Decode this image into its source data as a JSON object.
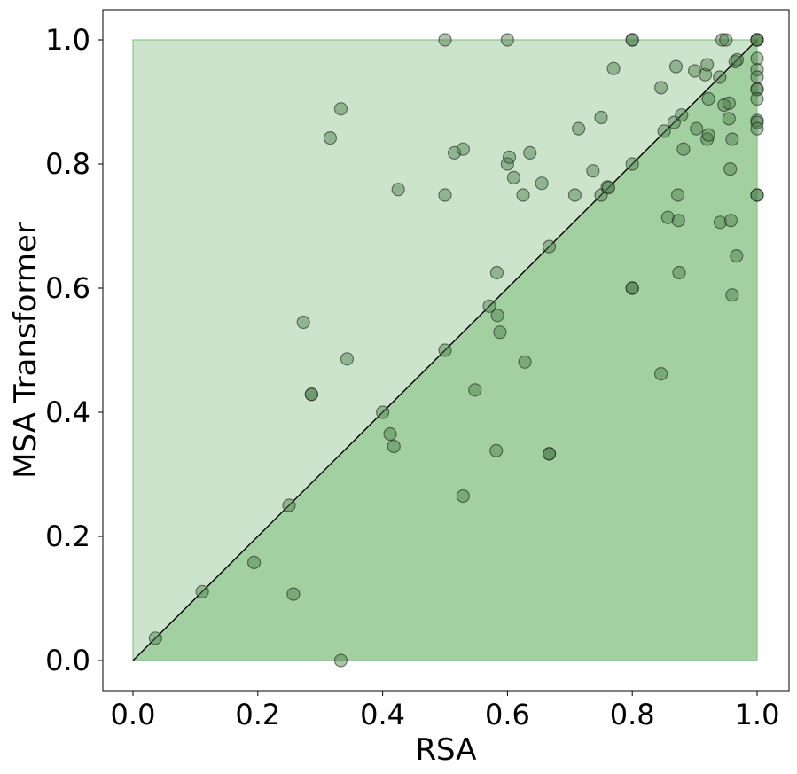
{
  "chart_data": {
    "type": "scatter",
    "title": "",
    "xlabel": "RSA",
    "ylabel": "MSA Transformer",
    "xlim": [
      -0.05,
      1.05
    ],
    "ylim": [
      -0.05,
      1.05
    ],
    "xticks": [
      "0.0",
      "0.2",
      "0.4",
      "0.6",
      "0.8",
      "1.0"
    ],
    "yticks": [
      "0.0",
      "0.2",
      "0.4",
      "0.6",
      "0.8",
      "1.0"
    ],
    "grid": false,
    "legend": "none",
    "regions": [
      {
        "kind": "upper-left triangle",
        "color": "#cce4cc"
      },
      {
        "kind": "lower-right triangle",
        "color": "#a3d0a1"
      }
    ],
    "reference_line": {
      "from": [
        0,
        0
      ],
      "to": [
        1,
        1
      ],
      "color": "#000000"
    },
    "marker_color": "#4a7a46",
    "points": [
      [
        0.036,
        0.036
      ],
      [
        0.111,
        0.111
      ],
      [
        0.194,
        0.158
      ],
      [
        0.25,
        0.25
      ],
      [
        0.257,
        0.107
      ],
      [
        0.333,
        0.0
      ],
      [
        0.273,
        0.545
      ],
      [
        0.286,
        0.429
      ],
      [
        0.286,
        0.429
      ],
      [
        0.316,
        0.842
      ],
      [
        0.333,
        0.889
      ],
      [
        0.343,
        0.486
      ],
      [
        0.4,
        0.4
      ],
      [
        0.412,
        0.365
      ],
      [
        0.418,
        0.345
      ],
      [
        0.425,
        0.759
      ],
      [
        0.5,
        1.0
      ],
      [
        0.5,
        0.75
      ],
      [
        0.5,
        0.5
      ],
      [
        0.515,
        0.818
      ],
      [
        0.529,
        0.824
      ],
      [
        0.529,
        0.265
      ],
      [
        0.548,
        0.436
      ],
      [
        0.571,
        0.571
      ],
      [
        0.582,
        0.338
      ],
      [
        0.583,
        0.625
      ],
      [
        0.584,
        0.556
      ],
      [
        0.588,
        0.529
      ],
      [
        0.6,
        1.0
      ],
      [
        0.6,
        0.8
      ],
      [
        0.603,
        0.811
      ],
      [
        0.61,
        0.778
      ],
      [
        0.625,
        0.75
      ],
      [
        0.628,
        0.481
      ],
      [
        0.636,
        0.818
      ],
      [
        0.655,
        0.769
      ],
      [
        0.667,
        0.667
      ],
      [
        0.667,
        0.333
      ],
      [
        0.667,
        0.333
      ],
      [
        0.708,
        0.75
      ],
      [
        0.714,
        0.857
      ],
      [
        0.737,
        0.789
      ],
      [
        0.75,
        0.875
      ],
      [
        0.75,
        0.75
      ],
      [
        0.76,
        0.763
      ],
      [
        0.762,
        0.762
      ],
      [
        0.77,
        0.954
      ],
      [
        0.8,
        1.0
      ],
      [
        0.8,
        1.0
      ],
      [
        0.8,
        0.8
      ],
      [
        0.8,
        0.6
      ],
      [
        0.8,
        0.6
      ],
      [
        0.846,
        0.923
      ],
      [
        0.846,
        0.462
      ],
      [
        0.851,
        0.853
      ],
      [
        0.857,
        0.714
      ],
      [
        0.867,
        0.867
      ],
      [
        0.87,
        0.957
      ],
      [
        0.873,
        0.75
      ],
      [
        0.874,
        0.709
      ],
      [
        0.875,
        0.625
      ],
      [
        0.879,
        0.879
      ],
      [
        0.882,
        0.824
      ],
      [
        0.9,
        0.95
      ],
      [
        0.903,
        0.857
      ],
      [
        0.917,
        0.944
      ],
      [
        0.92,
        0.96
      ],
      [
        0.92,
        0.84
      ],
      [
        0.922,
        0.847
      ],
      [
        0.922,
        0.905
      ],
      [
        0.94,
        0.94
      ],
      [
        0.941,
        0.706
      ],
      [
        0.944,
        1.0
      ],
      [
        0.947,
        0.895
      ],
      [
        0.95,
        1.0
      ],
      [
        0.955,
        0.873
      ],
      [
        0.955,
        0.898
      ],
      [
        0.957,
        0.792
      ],
      [
        0.958,
        0.709
      ],
      [
        0.96,
        0.84
      ],
      [
        0.96,
        0.589
      ],
      [
        0.965,
        0.965
      ],
      [
        0.967,
        0.652
      ],
      [
        0.968,
        0.968
      ],
      [
        1.0,
        1.0
      ],
      [
        1.0,
        1.0
      ],
      [
        1.0,
        1.0
      ],
      [
        1.0,
        0.97
      ],
      [
        1.0,
        0.952
      ],
      [
        1.0,
        0.94
      ],
      [
        1.0,
        0.921
      ],
      [
        1.0,
        0.92
      ],
      [
        1.0,
        0.905
      ],
      [
        1.0,
        0.87
      ],
      [
        1.0,
        0.867
      ],
      [
        1.0,
        0.857
      ],
      [
        1.0,
        0.75
      ],
      [
        1.0,
        0.75
      ]
    ]
  }
}
